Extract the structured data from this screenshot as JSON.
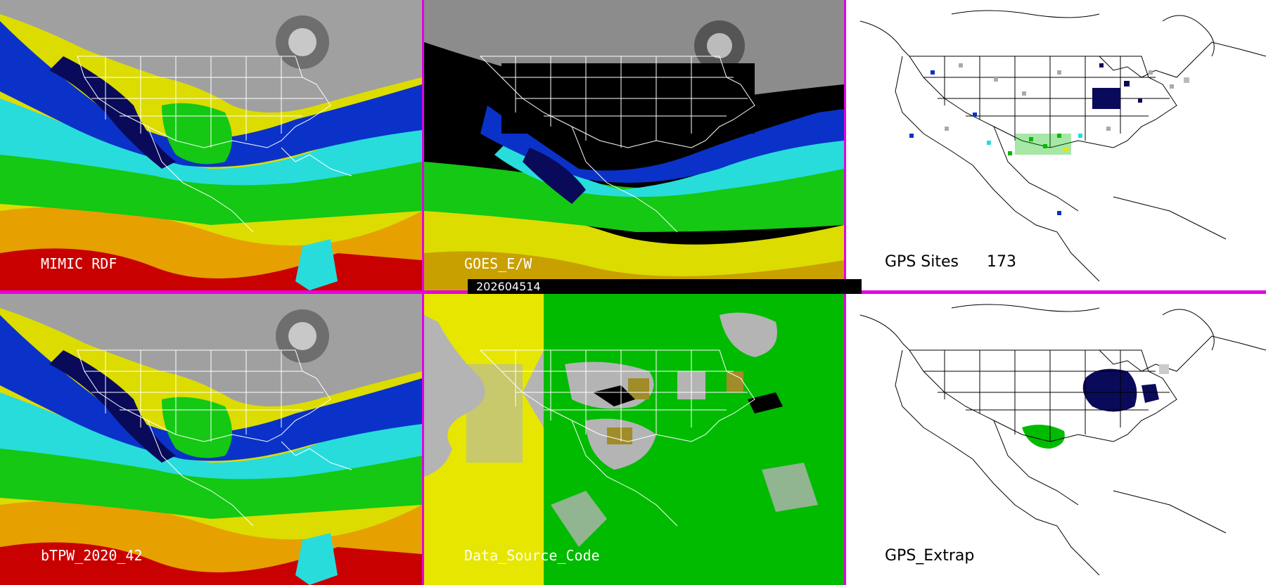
{
  "panels": {
    "mimic": {
      "label": "MIMIC RDF"
    },
    "goes": {
      "label": "GOES_E/W"
    },
    "gps_sites": {
      "label": "GPS Sites",
      "count": "173"
    },
    "btpw": {
      "label": "bTPW_2020_42"
    },
    "data_source": {
      "label": "Data_Source_Code"
    },
    "gps_extrap": {
      "label": "GPS_Extrap"
    }
  },
  "timestamp": "202604514",
  "colors": {
    "divider": "#e400e4",
    "gray_bg": "#b4b4b4",
    "green": "#00bb00",
    "yellow": "#e6e600",
    "navy": "#0a0a5a",
    "cyan": "#28dcdc",
    "blue": "#0a32c8",
    "red": "#c80000",
    "orange": "#e6a000"
  }
}
